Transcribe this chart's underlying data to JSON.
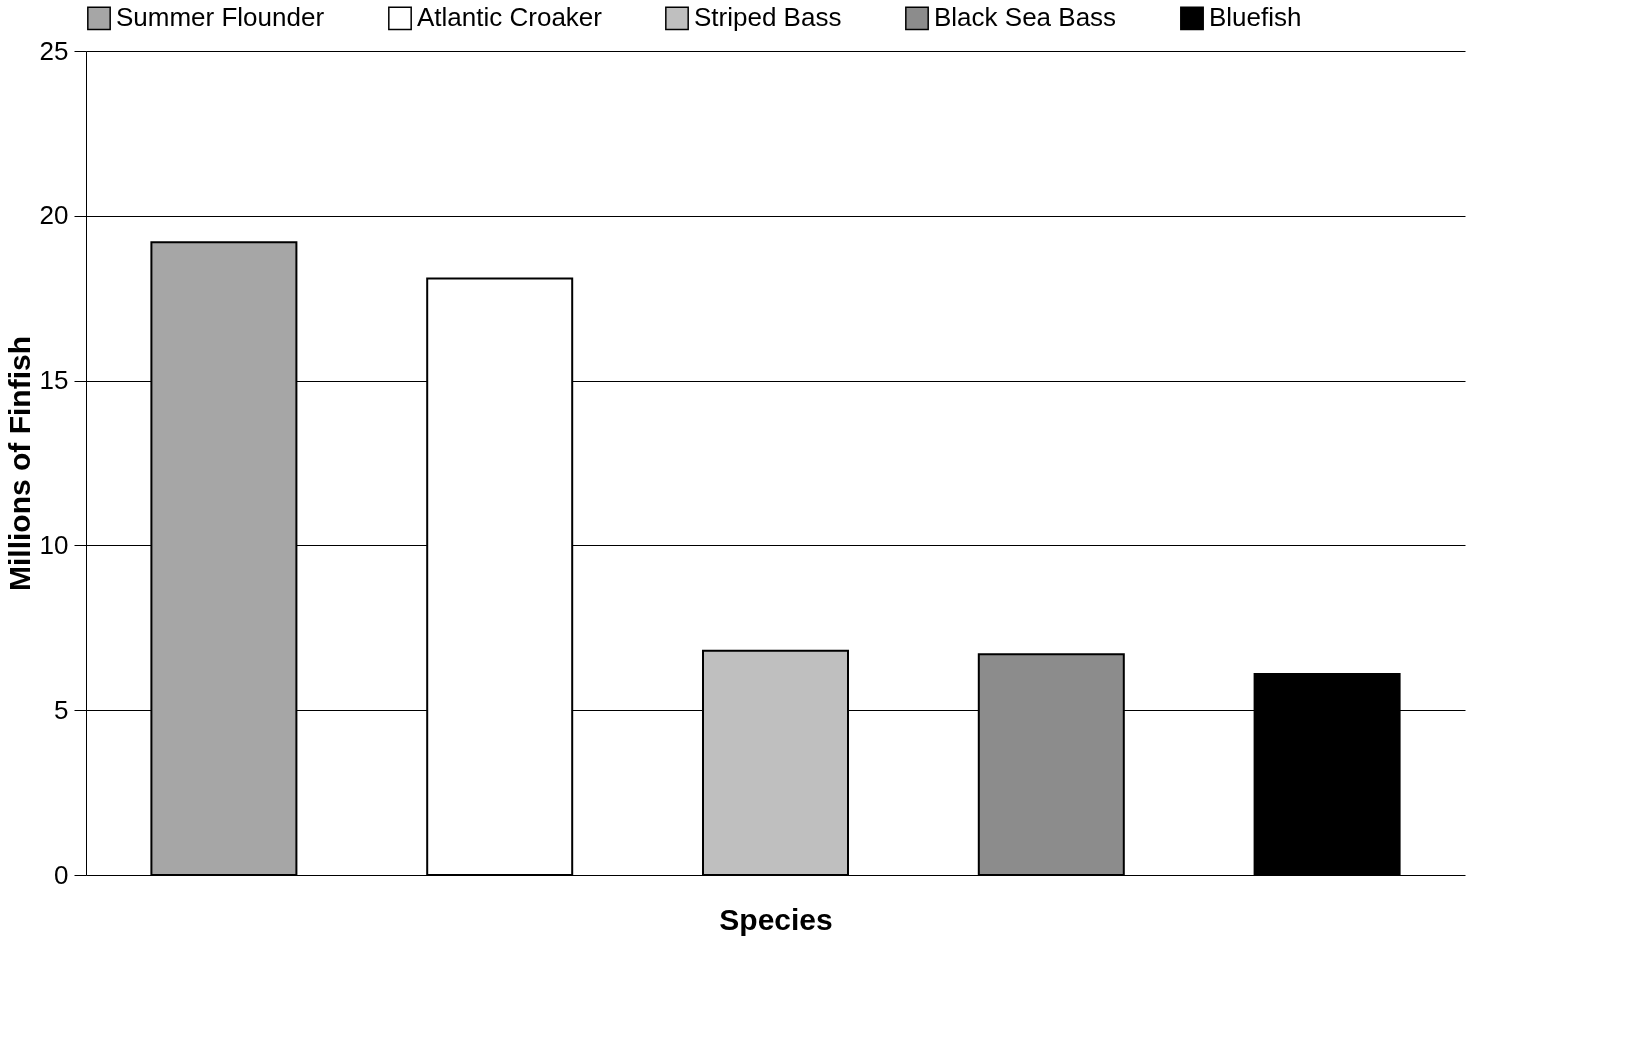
{
  "chart_data": {
    "type": "bar",
    "xlabel": "Species",
    "ylabel": "Millions of Finfish",
    "categories": [
      null,
      null,
      null,
      null,
      null
    ],
    "series": [
      {
        "name": "Summer Flounder",
        "color": "#a6a6a6",
        "values": [
          19.2,
          null,
          null,
          null,
          null
        ]
      },
      {
        "name": "Atlantic Croaker",
        "color": "#ffffff",
        "values": [
          null,
          18.1,
          null,
          null,
          null
        ]
      },
      {
        "name": "Striped Bass",
        "color": "#bfbfbf",
        "values": [
          null,
          null,
          6.8,
          null,
          null
        ]
      },
      {
        "name": "Black Sea Bass",
        "color": "#8c8c8c",
        "values": [
          null,
          null,
          null,
          6.7,
          null
        ]
      },
      {
        "name": "Bluefish",
        "color": "#000000",
        "values": [
          null,
          null,
          null,
          null,
          6.1
        ]
      }
    ],
    "ylim": [
      0,
      25
    ],
    "yticks": [
      0,
      5,
      10,
      15,
      20,
      25
    ],
    "grid": "y",
    "legend": "top",
    "tick_labels": "y"
  }
}
